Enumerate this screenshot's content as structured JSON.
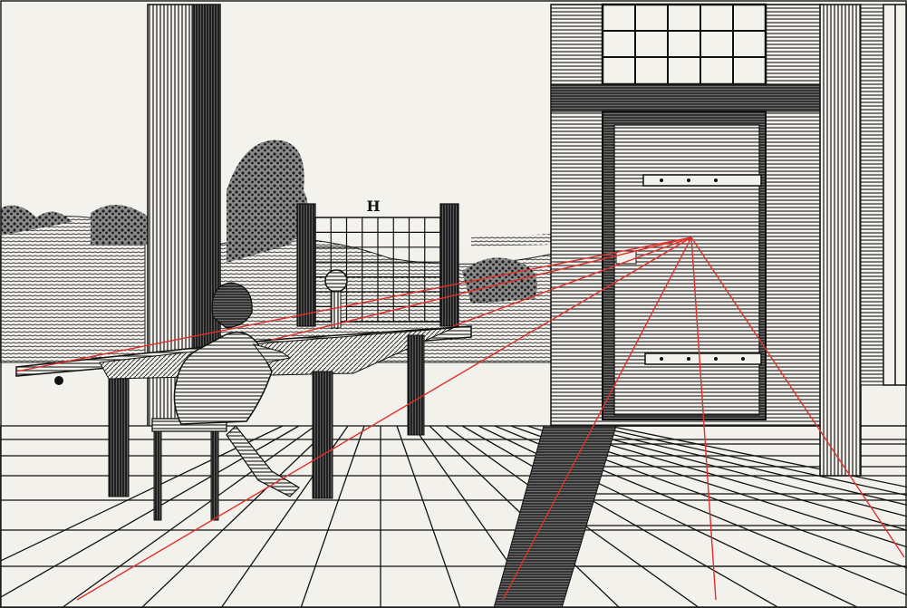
{
  "engraving": {
    "grid_label": "H",
    "colors": {
      "paper": "#f3f1ec",
      "ink": "#1a1a1a",
      "hatch": "#2b2b2b",
      "perspective_lines": "#e0302c"
    },
    "perspective_line_count": 7
  }
}
